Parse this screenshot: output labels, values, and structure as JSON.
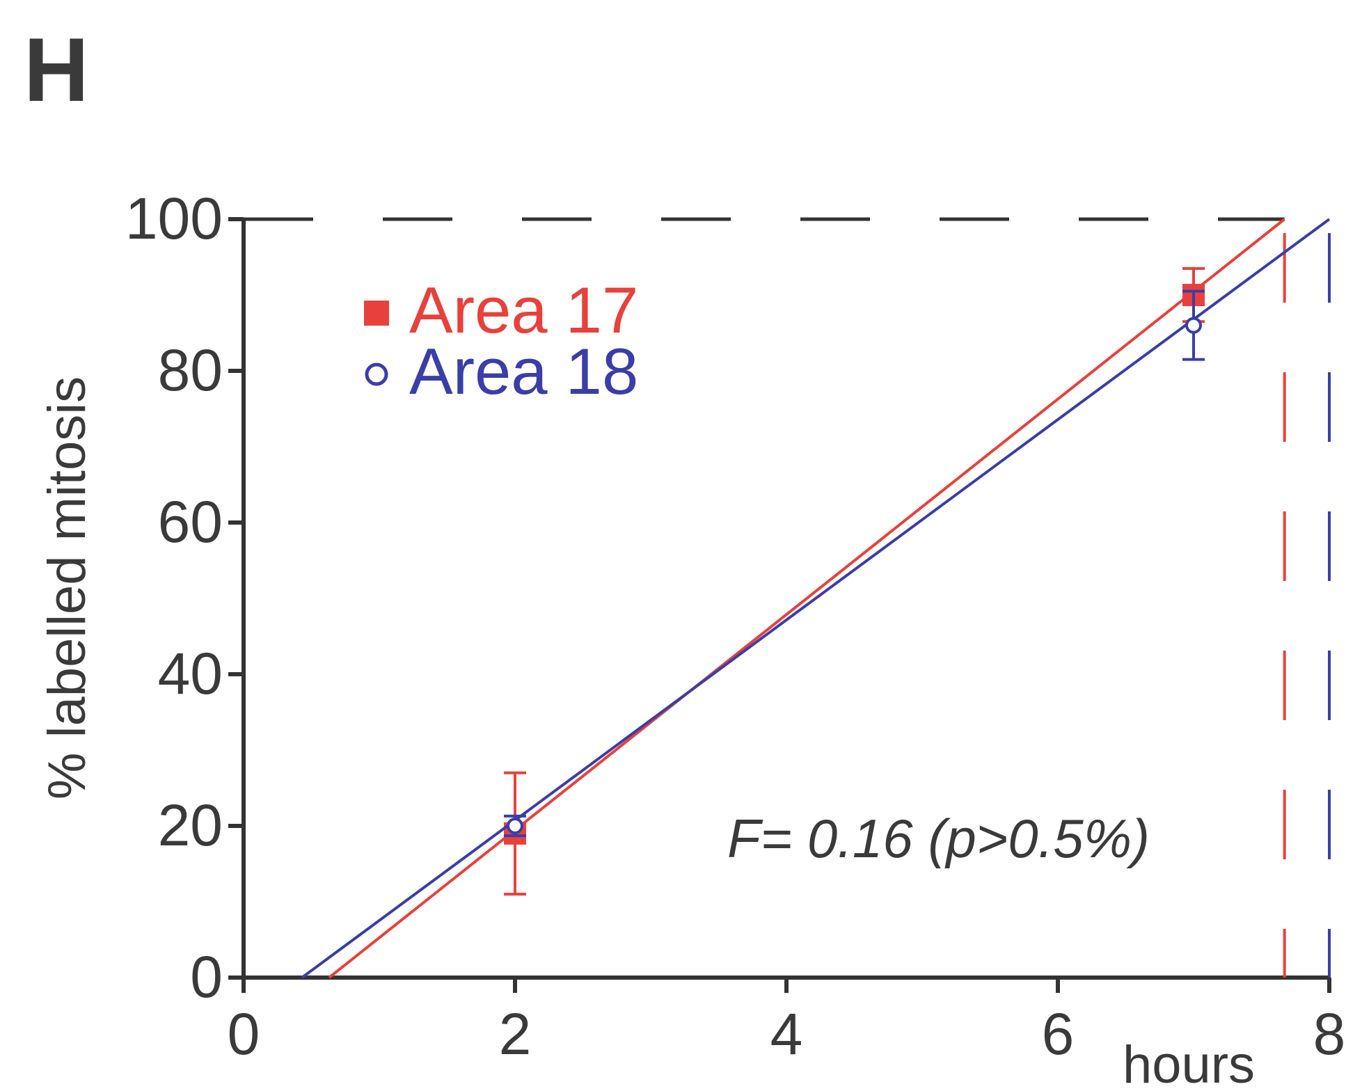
{
  "panel_label": "H",
  "colors": {
    "area17": "#e8413b",
    "area18": "#3a3ea8",
    "axis": "#333333",
    "reference": "#333333"
  },
  "annotation": "F= 0.16 (p>0.5%)",
  "chart_data": {
    "type": "scatter",
    "title": "",
    "xlabel": "hours",
    "ylabel": "% labelled mitosis",
    "xlim": [
      0,
      8
    ],
    "ylim": [
      0,
      100
    ],
    "xticks": [
      0,
      2,
      4,
      6,
      8
    ],
    "yticks": [
      0,
      20,
      40,
      60,
      80,
      100
    ],
    "grid": false,
    "legend_position": "top-left",
    "series": [
      {
        "name": "Area 17",
        "marker": "filled-square",
        "color": "#e8413b",
        "points": [
          {
            "x": 2,
            "y": 19,
            "err": 8
          },
          {
            "x": 7,
            "y": 90,
            "err": 3.5
          }
        ],
        "fit_line": {
          "x": [
            0.63,
            7.67
          ],
          "y": [
            0,
            100
          ]
        },
        "x_intercept_at_100": 7.67
      },
      {
        "name": "Area 18",
        "marker": "open-circle",
        "color": "#3a3ea8",
        "points": [
          {
            "x": 2,
            "y": 20,
            "err": 1.3
          },
          {
            "x": 7,
            "y": 86,
            "err": 4.5
          }
        ],
        "fit_line": {
          "x": [
            0.43,
            8.0
          ],
          "y": [
            0,
            100
          ]
        },
        "x_intercept_at_100": 8.0
      }
    ],
    "reference_line_y": 100
  }
}
